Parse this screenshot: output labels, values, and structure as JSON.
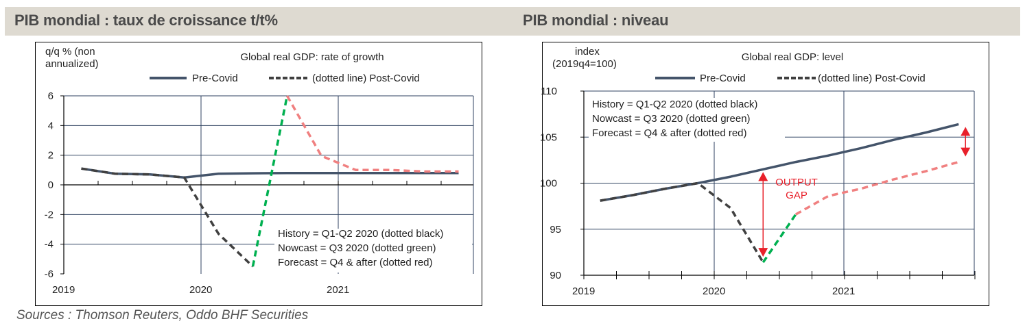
{
  "page": {
    "left_banner_title": "PIB mondial : taux de croissance t/t%",
    "right_banner_title": "PIB mondial : niveau",
    "sources": "Sources : Thomson Reuters, Oddo BHF Securities"
  },
  "colors": {
    "banner_bg": "#dedad1",
    "pre_covid": "#44546a",
    "history": "#404040",
    "nowcast": "#00b050",
    "forecast": "#f08080",
    "gridline": "#2f4260",
    "annotation_red": "#e8202a"
  },
  "chart_data": [
    {
      "type": "line",
      "title": "Global real GDP: rate of growth",
      "ylabel": "q/q % (non annualized)",
      "ylabel_lines": [
        "q/q % (non",
        "annualized)"
      ],
      "xlabel": "",
      "ylim": [
        -6,
        6
      ],
      "yticks": [
        6,
        4,
        2,
        0,
        -2,
        -4,
        -6
      ],
      "xtick_labels": [
        "2019",
        "2020",
        "2021"
      ],
      "x": [
        "2019Q1",
        "2019Q2",
        "2019Q3",
        "2019Q4",
        "2020Q1",
        "2020Q2",
        "2020Q3",
        "2020Q4",
        "2021Q1",
        "2021Q2",
        "2021Q3",
        "2021Q4"
      ],
      "grid": true,
      "legend": {
        "placement": "top",
        "entries": [
          "Pre-Covid",
          "(dotted line) Post-Covid"
        ]
      },
      "annotations": [
        "History = Q1-Q2 2020 (dotted black)",
        "Nowcast = Q3 2020 (dotted green)",
        "Forecast = Q4 & after (dotted red)"
      ],
      "series": [
        {
          "name": "Pre-Covid",
          "style": "solid",
          "values": [
            1.1,
            0.75,
            0.7,
            0.5,
            0.75,
            0.78,
            0.8,
            0.8,
            0.8,
            0.8,
            0.8,
            0.8
          ]
        },
        {
          "name": "History",
          "style": "dashed",
          "x_start": "2019Q1",
          "values": [
            1.1,
            0.75,
            0.7,
            0.5,
            -3.3,
            -5.5
          ]
        },
        {
          "name": "Nowcast",
          "style": "dashed",
          "x_start": "2020Q2",
          "values": [
            -5.5,
            6.0
          ]
        },
        {
          "name": "Forecast",
          "style": "dashed",
          "x_start": "2020Q3",
          "values": [
            6.0,
            1.95,
            1.0,
            1.0,
            0.9,
            0.9
          ]
        }
      ]
    },
    {
      "type": "line",
      "title": "Global real GDP: level",
      "ylabel": "index (2019q4=100)",
      "ylabel_lines": [
        "index",
        "(2019q4=100)"
      ],
      "xlabel": "",
      "ylim": [
        90,
        110
      ],
      "yticks": [
        110,
        105,
        100,
        95,
        90
      ],
      "xtick_labels": [
        "2019",
        "2020",
        "2021"
      ],
      "x": [
        "2019Q1",
        "2019Q2",
        "2019Q3",
        "2019Q4",
        "2020Q1",
        "2020Q2",
        "2020Q3",
        "2020Q4",
        "2021Q1",
        "2021Q2",
        "2021Q3",
        "2021Q4"
      ],
      "grid": true,
      "legend": {
        "placement": "top",
        "entries": [
          "Pre-Covid",
          "(dotted line) Post-Covid"
        ]
      },
      "annotations": [
        "History = Q1-Q2 2020 (dotted black)",
        "Nowcast = Q3 2020 (dotted green)",
        "Forecast = Q4 & after (dotted red)",
        "OUTPUT GAP"
      ],
      "output_gap_label": [
        "OUTPUT",
        "GAP"
      ],
      "series": [
        {
          "name": "Pre-Covid",
          "style": "solid",
          "values": [
            98.1,
            98.7,
            99.4,
            100.0,
            100.7,
            101.5,
            102.3,
            103.0,
            103.8,
            104.7,
            105.5,
            106.4
          ]
        },
        {
          "name": "History",
          "style": "dashed",
          "x_start": "2019Q1",
          "values": [
            98.1,
            98.7,
            99.4,
            100.0,
            97.3,
            91.4
          ]
        },
        {
          "name": "Nowcast",
          "style": "dashed",
          "x_start": "2020Q2",
          "values": [
            91.4,
            96.6
          ]
        },
        {
          "name": "Forecast",
          "style": "dashed",
          "x_start": "2020Q3",
          "values": [
            96.6,
            98.6,
            99.4,
            100.4,
            101.3,
            102.3
          ]
        }
      ],
      "gap_arrows": [
        {
          "x": "2020Q2",
          "from": 91.4,
          "to": 101.5
        },
        {
          "x": "2021Q4",
          "from": 102.3,
          "to": 106.4
        }
      ]
    }
  ]
}
